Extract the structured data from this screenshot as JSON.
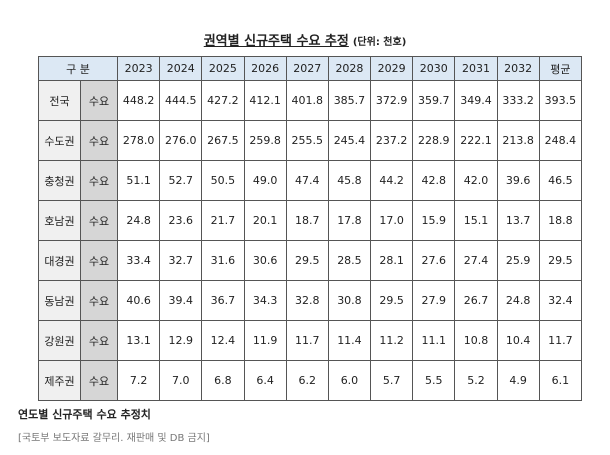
{
  "header": {
    "title": "권역별 신규주택 수요 추정",
    "unit": "(단위: 천호)"
  },
  "table": {
    "columns": [
      "구 분",
      "2023",
      "2024",
      "2025",
      "2026",
      "2027",
      "2028",
      "2029",
      "2030",
      "2031",
      "2032",
      "평균"
    ],
    "rows": [
      [
        "전국",
        "수요",
        "448.2",
        "444.5",
        "427.2",
        "412.1",
        "401.8",
        "385.7",
        "372.9",
        "359.7",
        "349.4",
        "333.2",
        "393.5"
      ],
      [
        "수도권",
        "수요",
        "278.0",
        "276.0",
        "267.5",
        "259.8",
        "255.5",
        "245.4",
        "237.2",
        "228.9",
        "222.1",
        "213.8",
        "248.4"
      ],
      [
        "충청권",
        "수요",
        "51.1",
        "52.7",
        "50.5",
        "49.0",
        "47.4",
        "45.8",
        "44.2",
        "42.8",
        "42.0",
        "39.6",
        "46.5"
      ],
      [
        "호남권",
        "수요",
        "24.8",
        "23.6",
        "21.7",
        "20.1",
        "18.7",
        "17.8",
        "17.0",
        "15.9",
        "15.1",
        "13.7",
        "18.8"
      ],
      [
        "대경권",
        "수요",
        "33.4",
        "32.7",
        "31.6",
        "30.6",
        "29.5",
        "28.5",
        "28.1",
        "27.6",
        "27.4",
        "25.9",
        "29.5"
      ],
      [
        "동남권",
        "수요",
        "40.6",
        "39.4",
        "36.7",
        "34.3",
        "32.8",
        "30.8",
        "29.5",
        "27.9",
        "26.7",
        "24.8",
        "32.4"
      ],
      [
        "강원권",
        "수요",
        "13.1",
        "12.9",
        "12.4",
        "11.9",
        "11.7",
        "11.4",
        "11.2",
        "11.1",
        "10.8",
        "10.4",
        "11.7"
      ],
      [
        "제주권",
        "수요",
        "7.2",
        "7.0",
        "6.8",
        "6.4",
        "6.2",
        "6.0",
        "5.7",
        "5.5",
        "5.2",
        "4.9",
        "6.1"
      ]
    ]
  },
  "caption": {
    "title": "연도별 신규주택 수요 추정치",
    "source": "[국토부 보도자료 갈무리. 재판매 및 DB 금지]"
  }
}
